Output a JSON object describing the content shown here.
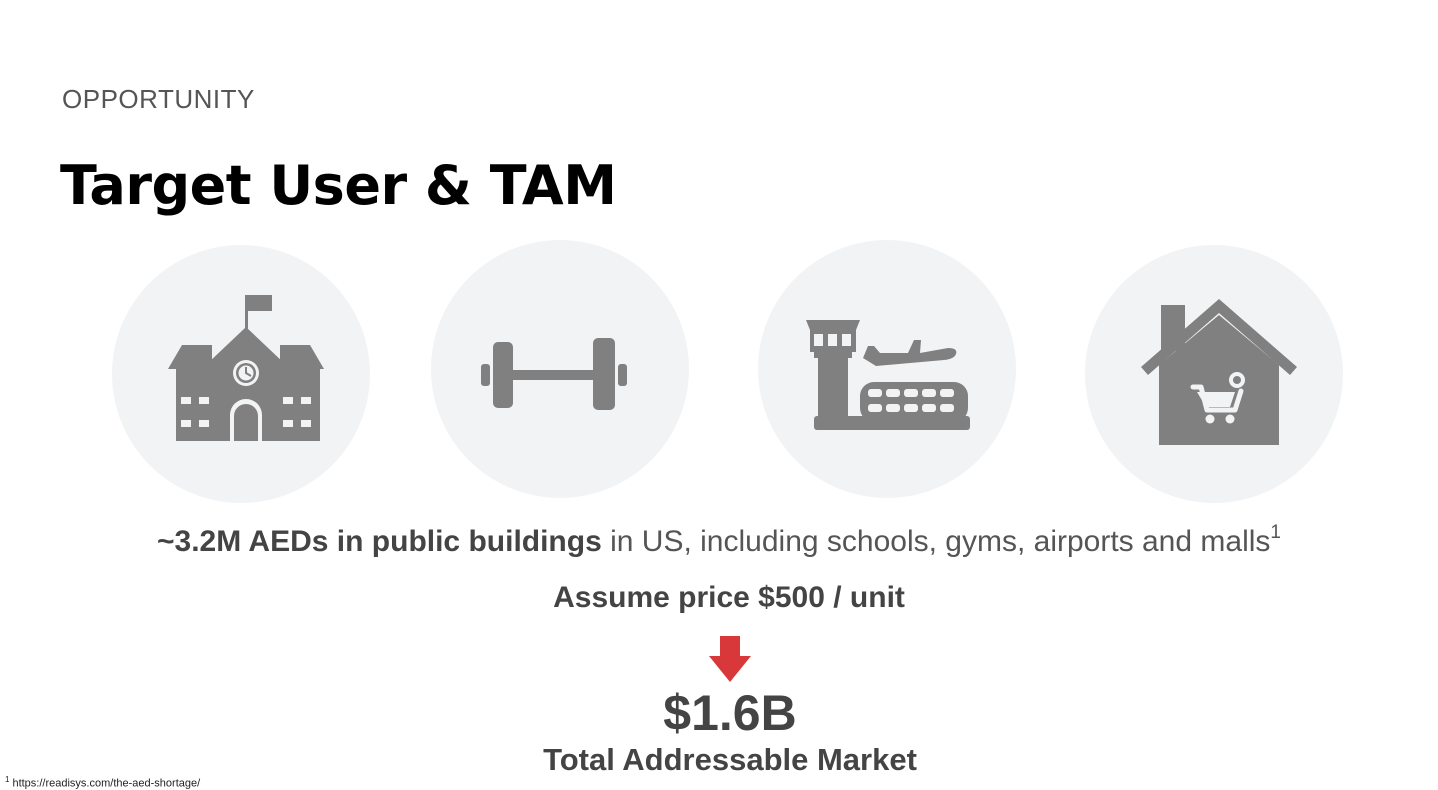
{
  "slide": {
    "eyebrow": "OPPORTUNITY",
    "title": "Target User & TAM"
  },
  "icons": [
    {
      "name": "school-icon"
    },
    {
      "name": "dumbbell-icon"
    },
    {
      "name": "airport-icon"
    },
    {
      "name": "mall-icon"
    }
  ],
  "stat": {
    "bold_text": "~3.2M AEDs in public buildings",
    "rest_text": " in US, including schools, gyms, airports and malls",
    "footnote_ref": "1"
  },
  "assumption": "Assume price $500 / unit",
  "tam": {
    "value": "$1.6B",
    "label": "Total Addressable Market"
  },
  "footnote": {
    "ref": "1",
    "text": "https://readisys.com/the-aed-shortage/"
  },
  "colors": {
    "icon_gray": "#808080",
    "circle_bg": "#f1f3f5",
    "arrow_red": "#d9383a"
  }
}
